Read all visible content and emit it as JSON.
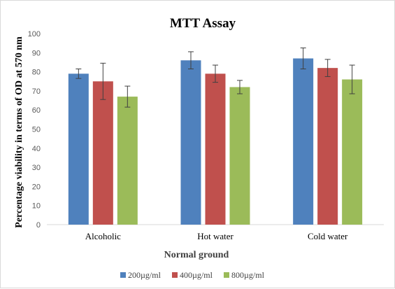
{
  "chart_data": {
    "type": "bar",
    "title": "MTT Assay",
    "xlabel": "Normal ground",
    "ylabel": "Percentage viability in terms of OD at 570 nm",
    "ylim": [
      0,
      100
    ],
    "ytick_step": 10,
    "grid": false,
    "legend_position": "bottom",
    "categories": [
      "Alcoholic",
      "Hot water",
      "Cold water"
    ],
    "series": [
      {
        "name": "200µg/ml",
        "color": "#4f81bd",
        "values": [
          79,
          86,
          87
        ],
        "errors": [
          2.5,
          4.5,
          5.5
        ]
      },
      {
        "name": "400µg/ml",
        "color": "#c0504d",
        "values": [
          75,
          79,
          82
        ],
        "errors": [
          9.5,
          4.5,
          4.5
        ]
      },
      {
        "name": "800µg/ml",
        "color": "#9bbb59",
        "values": [
          67,
          72,
          76
        ],
        "errors": [
          5.5,
          3.5,
          7.5
        ]
      }
    ]
  }
}
